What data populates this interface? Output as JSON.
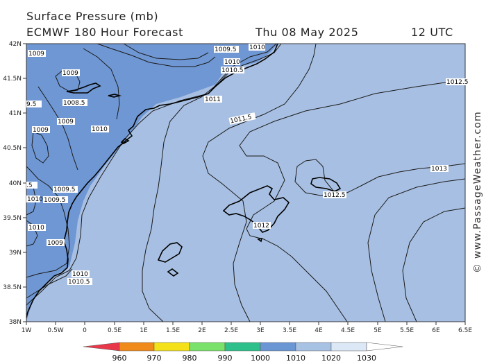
{
  "header": {
    "title_line1": "Surface Pressure (mb)",
    "title_line2": "ECMWF 180 Hour Forecast",
    "date": "Thu 08 May 2025",
    "time": "12 UTC"
  },
  "credit": "© www.PassageWeather.com",
  "axes": {
    "lat_labels": [
      "42N",
      "41.5N",
      "41N",
      "40.5N",
      "40N",
      "39.5N",
      "39N",
      "38.5N",
      "38N"
    ],
    "lon_labels": [
      "1W",
      "0.5W",
      "0",
      "0.5E",
      "1E",
      "1.5E",
      "2E",
      "2.5E",
      "3E",
      "3.5E",
      "4E",
      "4.5E",
      "5E",
      "5.5E",
      "6E",
      "6.5E"
    ]
  },
  "isobar_labels": [
    "1009",
    "1009",
    "1009.5",
    "1010",
    "1010",
    "1010.5",
    "1011",
    "1011.5",
    "1012.5",
    "1013",
    "1012.5",
    "1012",
    "1009",
    "1008.5",
    "1009",
    "1010",
    "1009",
    "1009.5",
    "1009.5",
    "1010",
    "1010",
    "1009",
    "1010",
    "1010.5",
    "9.5",
    ".5"
  ],
  "legend": {
    "values": [
      "960",
      "970",
      "980",
      "990",
      "1000",
      "1010",
      "1020",
      "1030"
    ],
    "colors": [
      "#e8384a",
      "#f08a1a",
      "#f4e11a",
      "#7ae26a",
      "#2ec08a",
      "#6a96d4",
      "#a8c2e4",
      "#dce8f6",
      "#ffffff"
    ]
  },
  "map_colors": {
    "band_1000_1010": "#6f97d3",
    "band_1010_1020": "#a7bfe2",
    "coast": "#000000",
    "isobar": "#1a1a1a"
  }
}
